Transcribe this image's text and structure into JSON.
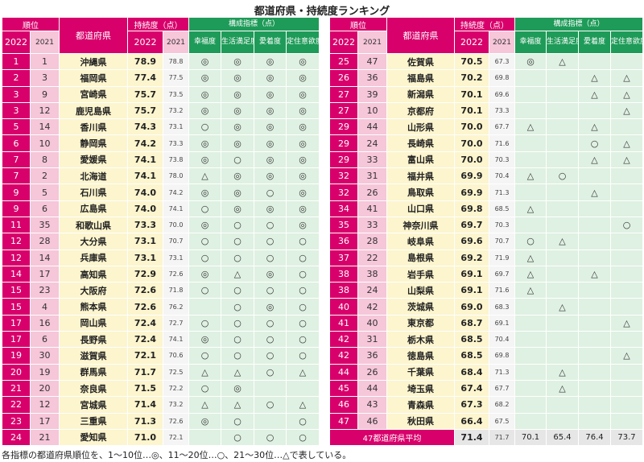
{
  "title": "都道府県・持続度ランキング",
  "header": {
    "rank_group": "順位",
    "year_2022": "2022",
    "year_2021": "2021",
    "prefecture": "都道府県",
    "score_group": "持続度（点）",
    "indicator_group": "構成指標（点）",
    "indicators": [
      "幸福度",
      "生活満足度",
      "愛着度",
      "定住意欲度"
    ]
  },
  "left_rows": [
    {
      "r22": "1",
      "r21": "1",
      "pref": "沖縄県",
      "s22": "78.9",
      "s21": "78.8",
      "ind": [
        "◎",
        "◎",
        "◎",
        "◎"
      ]
    },
    {
      "r22": "2",
      "r21": "3",
      "pref": "福岡県",
      "s22": "77.4",
      "s21": "77.5",
      "ind": [
        "◎",
        "◎",
        "◎",
        "◎"
      ]
    },
    {
      "r22": "3",
      "r21": "9",
      "pref": "宮崎県",
      "s22": "75.7",
      "s21": "73.5",
      "ind": [
        "◎",
        "◎",
        "◎",
        "◎"
      ]
    },
    {
      "r22": "3",
      "r21": "12",
      "pref": "鹿児島県",
      "s22": "75.7",
      "s21": "73.2",
      "ind": [
        "◎",
        "◎",
        "◎",
        "◎"
      ]
    },
    {
      "r22": "5",
      "r21": "14",
      "pref": "香川県",
      "s22": "74.3",
      "s21": "73.1",
      "ind": [
        "○",
        "◎",
        "◎",
        "◎"
      ]
    },
    {
      "r22": "6",
      "r21": "10",
      "pref": "静岡県",
      "s22": "74.2",
      "s21": "73.3",
      "ind": [
        "◎",
        "◎",
        "◎",
        "◎"
      ]
    },
    {
      "r22": "7",
      "r21": "8",
      "pref": "愛媛県",
      "s22": "74.1",
      "s21": "73.8",
      "ind": [
        "◎",
        "○",
        "◎",
        "◎"
      ]
    },
    {
      "r22": "7",
      "r21": "2",
      "pref": "北海道",
      "s22": "74.1",
      "s21": "78.0",
      "ind": [
        "△",
        "◎",
        "◎",
        "◎"
      ]
    },
    {
      "r22": "9",
      "r21": "5",
      "pref": "石川県",
      "s22": "74.0",
      "s21": "74.2",
      "ind": [
        "◎",
        "◎",
        "○",
        "◎"
      ]
    },
    {
      "r22": "9",
      "r21": "6",
      "pref": "広島県",
      "s22": "74.0",
      "s21": "74.1",
      "ind": [
        "○",
        "◎",
        "◎",
        "◎"
      ]
    },
    {
      "r22": "11",
      "r21": "35",
      "pref": "和歌山県",
      "s22": "73.3",
      "s21": "70.0",
      "ind": [
        "◎",
        "○",
        "○",
        "◎"
      ]
    },
    {
      "r22": "12",
      "r21": "28",
      "pref": "大分県",
      "s22": "73.1",
      "s21": "70.7",
      "ind": [
        "○",
        "○",
        "○",
        "○"
      ]
    },
    {
      "r22": "12",
      "r21": "14",
      "pref": "兵庫県",
      "s22": "73.1",
      "s21": "73.1",
      "ind": [
        "○",
        "○",
        "○",
        "○"
      ]
    },
    {
      "r22": "14",
      "r21": "17",
      "pref": "高知県",
      "s22": "72.9",
      "s21": "72.6",
      "ind": [
        "◎",
        "△",
        "◎",
        "○"
      ]
    },
    {
      "r22": "15",
      "r21": "23",
      "pref": "大阪府",
      "s22": "72.6",
      "s21": "71.8",
      "ind": [
        "○",
        "○",
        "○",
        "○"
      ]
    },
    {
      "r22": "15",
      "r21": "4",
      "pref": "熊本県",
      "s22": "72.6",
      "s21": "76.2",
      "ind": [
        "",
        "○",
        "◎",
        "○"
      ]
    },
    {
      "r22": "17",
      "r21": "16",
      "pref": "岡山県",
      "s22": "72.4",
      "s21": "72.7",
      "ind": [
        "○",
        "○",
        "○",
        "○"
      ]
    },
    {
      "r22": "17",
      "r21": "6",
      "pref": "長野県",
      "s22": "72.4",
      "s21": "74.1",
      "ind": [
        "◎",
        "○",
        "○",
        "○"
      ]
    },
    {
      "r22": "19",
      "r21": "30",
      "pref": "滋賀県",
      "s22": "72.1",
      "s21": "70.6",
      "ind": [
        "○",
        "○",
        "○",
        "○"
      ]
    },
    {
      "r22": "20",
      "r21": "19",
      "pref": "群馬県",
      "s22": "71.7",
      "s21": "72.5",
      "ind": [
        "△",
        "△",
        "○",
        "△"
      ]
    },
    {
      "r22": "21",
      "r21": "20",
      "pref": "奈良県",
      "s22": "71.5",
      "s21": "72.2",
      "ind": [
        "○",
        "◎",
        "",
        ""
      ]
    },
    {
      "r22": "22",
      "r21": "12",
      "pref": "宮城県",
      "s22": "71.4",
      "s21": "73.2",
      "ind": [
        "△",
        "△",
        "○",
        "△"
      ]
    },
    {
      "r22": "23",
      "r21": "17",
      "pref": "三重県",
      "s22": "71.3",
      "s21": "72.6",
      "ind": [
        "◎",
        "○",
        "",
        "○"
      ]
    },
    {
      "r22": "24",
      "r21": "21",
      "pref": "愛知県",
      "s22": "71.0",
      "s21": "72.1",
      "ind": [
        "",
        "○",
        "○",
        "○"
      ]
    }
  ],
  "right_rows": [
    {
      "r22": "25",
      "r21": "47",
      "pref": "佐賀県",
      "s22": "70.5",
      "s21": "67.3",
      "ind": [
        "◎",
        "△",
        "",
        ""
      ]
    },
    {
      "r22": "26",
      "r21": "36",
      "pref": "福島県",
      "s22": "70.2",
      "s21": "69.8",
      "ind": [
        "",
        "",
        "△",
        "△"
      ]
    },
    {
      "r22": "27",
      "r21": "39",
      "pref": "新潟県",
      "s22": "70.1",
      "s21": "69.6",
      "ind": [
        "",
        "",
        "△",
        "△"
      ]
    },
    {
      "r22": "27",
      "r21": "10",
      "pref": "京都府",
      "s22": "70.1",
      "s21": "73.3",
      "ind": [
        "",
        "",
        "",
        "△"
      ]
    },
    {
      "r22": "29",
      "r21": "44",
      "pref": "山形県",
      "s22": "70.0",
      "s21": "67.7",
      "ind": [
        "△",
        "",
        "△",
        ""
      ]
    },
    {
      "r22": "29",
      "r21": "24",
      "pref": "長崎県",
      "s22": "70.0",
      "s21": "71.6",
      "ind": [
        "",
        "",
        "○",
        "△"
      ]
    },
    {
      "r22": "29",
      "r21": "33",
      "pref": "富山県",
      "s22": "70.0",
      "s21": "70.3",
      "ind": [
        "",
        "",
        "△",
        "△"
      ]
    },
    {
      "r22": "32",
      "r21": "31",
      "pref": "福井県",
      "s22": "69.9",
      "s21": "70.4",
      "ind": [
        "△",
        "○",
        "",
        ""
      ]
    },
    {
      "r22": "32",
      "r21": "26",
      "pref": "鳥取県",
      "s22": "69.9",
      "s21": "71.3",
      "ind": [
        "",
        "",
        "△",
        ""
      ]
    },
    {
      "r22": "34",
      "r21": "41",
      "pref": "山口県",
      "s22": "69.8",
      "s21": "68.5",
      "ind": [
        "△",
        "",
        "",
        ""
      ]
    },
    {
      "r22": "35",
      "r21": "33",
      "pref": "神奈川県",
      "s22": "69.7",
      "s21": "70.3",
      "ind": [
        "",
        "",
        "",
        "○"
      ]
    },
    {
      "r22": "36",
      "r21": "28",
      "pref": "岐阜県",
      "s22": "69.6",
      "s21": "70.7",
      "ind": [
        "○",
        "△",
        "",
        ""
      ]
    },
    {
      "r22": "37",
      "r21": "22",
      "pref": "島根県",
      "s22": "69.2",
      "s21": "71.9",
      "ind": [
        "△",
        "",
        "",
        ""
      ]
    },
    {
      "r22": "38",
      "r21": "38",
      "pref": "岩手県",
      "s22": "69.1",
      "s21": "69.7",
      "ind": [
        "△",
        "",
        "△",
        ""
      ]
    },
    {
      "r22": "38",
      "r21": "24",
      "pref": "山梨県",
      "s22": "69.1",
      "s21": "71.6",
      "ind": [
        "△",
        "",
        "",
        ""
      ]
    },
    {
      "r22": "40",
      "r21": "42",
      "pref": "茨城県",
      "s22": "69.0",
      "s21": "68.3",
      "ind": [
        "",
        "△",
        "",
        ""
      ]
    },
    {
      "r22": "41",
      "r21": "40",
      "pref": "東京都",
      "s22": "68.7",
      "s21": "69.1",
      "ind": [
        "",
        "",
        "",
        "△"
      ]
    },
    {
      "r22": "42",
      "r21": "31",
      "pref": "栃木県",
      "s22": "68.5",
      "s21": "70.4",
      "ind": [
        "",
        "",
        "",
        ""
      ]
    },
    {
      "r22": "42",
      "r21": "36",
      "pref": "徳島県",
      "s22": "68.5",
      "s21": "69.8",
      "ind": [
        "",
        "",
        "",
        "△"
      ]
    },
    {
      "r22": "44",
      "r21": "26",
      "pref": "千葉県",
      "s22": "68.4",
      "s21": "71.3",
      "ind": [
        "",
        "△",
        "",
        ""
      ]
    },
    {
      "r22": "45",
      "r21": "44",
      "pref": "埼玉県",
      "s22": "67.4",
      "s21": "67.7",
      "ind": [
        "",
        "△",
        "",
        ""
      ]
    },
    {
      "r22": "46",
      "r21": "43",
      "pref": "青森県",
      "s22": "67.3",
      "s21": "68.2",
      "ind": [
        "",
        "",
        "",
        ""
      ]
    },
    {
      "r22": "47",
      "r21": "46",
      "pref": "秋田県",
      "s22": "66.4",
      "s21": "67.5",
      "ind": [
        "",
        "",
        "",
        ""
      ]
    }
  ],
  "average": {
    "label": "47都道府県平均",
    "s22": "71.4",
    "s21": "71.7",
    "ind": [
      "70.1",
      "65.4",
      "76.4",
      "73.7"
    ]
  },
  "footnote": "各指標の都道府県順位を、1～10位…◎、11～20位…○、21～30位…△で表している。"
}
